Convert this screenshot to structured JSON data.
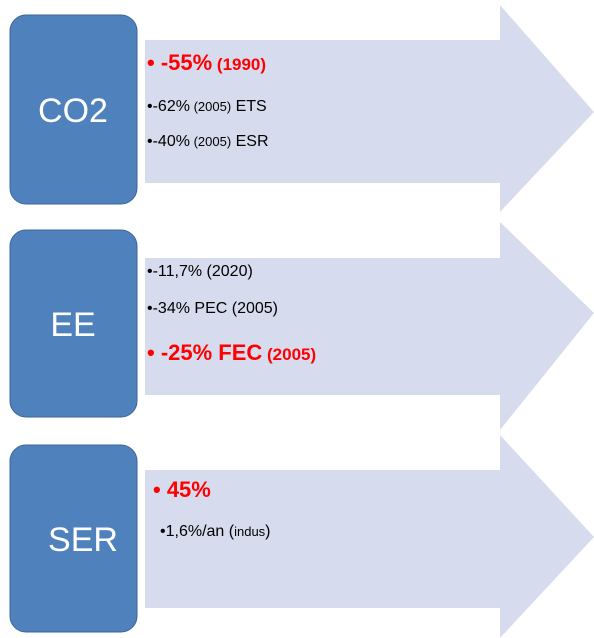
{
  "rows": [
    {
      "label": "CO2",
      "items": [
        [
          "• -55%",
          " (1990)"
        ],
        [
          "•-62%",
          " (2005)",
          " ETS"
        ],
        [
          "•-40%",
          " (2005)",
          " ESR"
        ]
      ]
    },
    {
      "label": "EE",
      "items": [
        [
          "•-11,7% (2020)"
        ],
        [
          "•-34% PEC (2005)"
        ],
        [
          "• -25% FEC",
          " (2005)"
        ]
      ]
    },
    {
      "label": "SER",
      "items": [
        [
          "• 45%"
        ],
        [
          "•1,6%/an (",
          "indus",
          ")"
        ]
      ]
    }
  ]
}
